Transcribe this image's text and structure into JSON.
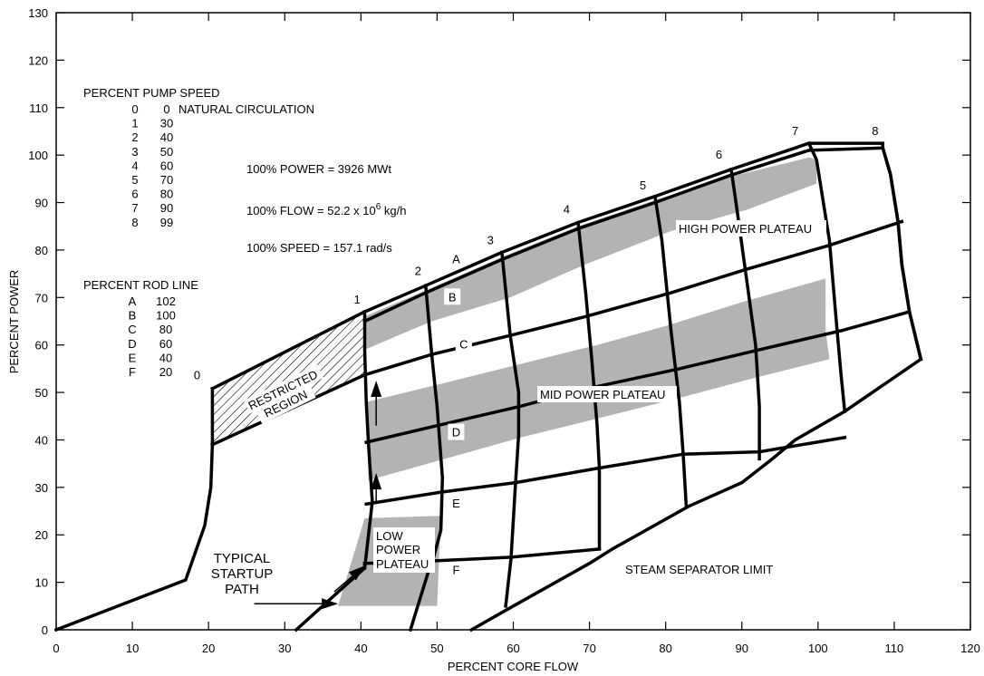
{
  "chart_data": {
    "type": "line",
    "xlabel": "PERCENT CORE FLOW",
    "ylabel": "PERCENT POWER",
    "xlim": [
      0,
      120
    ],
    "ylim": [
      0,
      130
    ],
    "x_ticks": [
      "0",
      "10",
      "20",
      "30",
      "40",
      "50",
      "60",
      "70",
      "80",
      "90",
      "100",
      "110",
      "120"
    ],
    "y_ticks": [
      "0",
      "10",
      "20",
      "30",
      "40",
      "50",
      "60",
      "70",
      "80",
      "90",
      "100",
      "110",
      "120",
      "130"
    ],
    "grid": false,
    "colors": {
      "line": "#000000",
      "plateau": "#b3b3b3",
      "background": "#ffffff"
    },
    "legend_pump": {
      "title": "PERCENT PUMP SPEED",
      "rows": [
        {
          "id": "0",
          "value": "0",
          "note": "NATURAL CIRCULATION"
        },
        {
          "id": "1",
          "value": "30",
          "note": ""
        },
        {
          "id": "2",
          "value": "40",
          "note": ""
        },
        {
          "id": "3",
          "value": "50",
          "note": ""
        },
        {
          "id": "4",
          "value": "60",
          "note": ""
        },
        {
          "id": "5",
          "value": "70",
          "note": ""
        },
        {
          "id": "6",
          "value": "80",
          "note": ""
        },
        {
          "id": "7",
          "value": "90",
          "note": ""
        },
        {
          "id": "8",
          "value": "99",
          "note": ""
        }
      ]
    },
    "legend_rod": {
      "title": "PERCENT ROD LINE",
      "rows": [
        {
          "id": "A",
          "value": "102"
        },
        {
          "id": "B",
          "value": "100"
        },
        {
          "id": "C",
          "value": "80"
        },
        {
          "id": "D",
          "value": "60"
        },
        {
          "id": "E",
          "value": "40"
        },
        {
          "id": "F",
          "value": "20"
        }
      ]
    },
    "notes": {
      "power": "100% POWER = 3926 MWt",
      "flow_pre": "100% FLOW = 52.2 x 10",
      "flow_exp": "6",
      "flow_post": " kg/h",
      "speed": "100% SPEED = 157.1 rad/s"
    },
    "region_labels": {
      "restricted_line1": "RESTRICTED",
      "restricted_line2": "REGION",
      "high_plateau": "HIGH POWER PLATEAU",
      "mid_plateau": "MID POWER PLATEAU",
      "low_plateau_1": "LOW",
      "low_plateau_2": "POWER",
      "low_plateau_3": "PLATEAU",
      "startup_1": "TYPICAL",
      "startup_2": "STARTUP",
      "startup_3": "PATH",
      "separator": "STEAM SEPARATOR LIMIT"
    },
    "pump_speed_lines": [
      {
        "id": "0",
        "points": [
          [
            20.5,
            50.8
          ],
          [
            20.5,
            39
          ]
        ]
      },
      {
        "id": "1",
        "points": [
          [
            40.5,
            67
          ],
          [
            40.5,
            59
          ],
          [
            40.7,
            48
          ],
          [
            41,
            39
          ],
          [
            41.5,
            27
          ],
          [
            40.5,
            13
          ]
        ]
      },
      {
        "id": "2",
        "points": [
          [
            48.5,
            72.5
          ],
          [
            49.3,
            58
          ],
          [
            50,
            47
          ],
          [
            50.7,
            32
          ],
          [
            50.5,
            21
          ],
          [
            49.5,
            15
          ],
          [
            49,
            13
          ],
          [
            46.5,
            0
          ]
        ]
      },
      {
        "id": "3",
        "points": [
          [
            58.5,
            79.5
          ],
          [
            59.6,
            62
          ],
          [
            60.7,
            50
          ],
          [
            60.7,
            41
          ],
          [
            60.3,
            31
          ],
          [
            59.7,
            15
          ],
          [
            59,
            5
          ]
        ]
      },
      {
        "id": "4",
        "points": [
          [
            68.5,
            85.8
          ],
          [
            69.5,
            71
          ],
          [
            70.3,
            57
          ],
          [
            71,
            43
          ],
          [
            71.3,
            34
          ],
          [
            71.3,
            17
          ]
        ]
      },
      {
        "id": "5",
        "points": [
          [
            78.6,
            91.3
          ],
          [
            79.5,
            82
          ],
          [
            80.7,
            63
          ],
          [
            81.8,
            48
          ],
          [
            82.3,
            37
          ],
          [
            82.7,
            26
          ]
        ]
      },
      {
        "id": "6",
        "points": [
          [
            88.6,
            97
          ],
          [
            89.5,
            87
          ],
          [
            90.7,
            73
          ],
          [
            91.8,
            60
          ],
          [
            92.3,
            47
          ],
          [
            92.3,
            36
          ]
        ]
      },
      {
        "id": "7",
        "points": [
          [
            98.8,
            102.5
          ],
          [
            99.8,
            99
          ],
          [
            101.5,
            82
          ],
          [
            102.5,
            63
          ],
          [
            103,
            54
          ],
          [
            103.5,
            46
          ]
        ]
      },
      {
        "id": "8",
        "points": [
          [
            108.5,
            101.5
          ],
          [
            109.5,
            96
          ],
          [
            110.5,
            86
          ],
          [
            111,
            77
          ],
          [
            112,
            67
          ],
          [
            113.5,
            57
          ]
        ]
      }
    ],
    "rod_lines": [
      {
        "id": "A",
        "points": [
          [
            20.5,
            50.8
          ],
          [
            40.5,
            67
          ],
          [
            48.5,
            72.5
          ],
          [
            58.5,
            79.5
          ],
          [
            68.5,
            85.8
          ],
          [
            78.6,
            91.3
          ],
          [
            88.6,
            97
          ],
          [
            97,
            101.5
          ],
          [
            98.8,
            102.5
          ],
          [
            108.5,
            102.5
          ],
          [
            108.5,
            101.5
          ],
          [
            109.5,
            96
          ],
          [
            110.5,
            86
          ],
          [
            111,
            77
          ],
          [
            112,
            67
          ],
          [
            113.5,
            57
          ]
        ]
      },
      {
        "id": "B",
        "points": [
          [
            40.5,
            65
          ],
          [
            48.5,
            71
          ],
          [
            58.5,
            78
          ],
          [
            68.5,
            84.5
          ],
          [
            78.6,
            90
          ],
          [
            88.6,
            95.8
          ],
          [
            98.8,
            101
          ],
          [
            108.5,
            101.5
          ]
        ]
      },
      {
        "id": "C",
        "points": [
          [
            20.5,
            39
          ],
          [
            40.5,
            53.7
          ],
          [
            49.3,
            58
          ],
          [
            59.6,
            62
          ],
          [
            69.5,
            66
          ],
          [
            80.7,
            71
          ],
          [
            90.7,
            76
          ],
          [
            101.5,
            81
          ],
          [
            111,
            86
          ]
        ]
      },
      {
        "id": "D",
        "points": [
          [
            40.7,
            39.5
          ],
          [
            50,
            43
          ],
          [
            60.7,
            47
          ],
          [
            70.3,
            51
          ],
          [
            81.8,
            55
          ],
          [
            92.3,
            59
          ],
          [
            103,
            63
          ],
          [
            112,
            67
          ]
        ]
      },
      {
        "id": "E",
        "points": [
          [
            40.7,
            26.5
          ],
          [
            50.5,
            29
          ],
          [
            60.3,
            31
          ],
          [
            71,
            34
          ],
          [
            82.3,
            37
          ],
          [
            92.3,
            37.5
          ],
          [
            103.5,
            40.5
          ]
        ]
      },
      {
        "id": "F",
        "points": [
          [
            40.5,
            14
          ],
          [
            49.5,
            14.5
          ],
          [
            59.7,
            15.3
          ],
          [
            71.3,
            17
          ]
        ]
      }
    ],
    "startup_curve": [
      [
        0,
        0
      ],
      [
        17,
        10.5
      ],
      [
        19.5,
        22
      ],
      [
        20.3,
        30
      ],
      [
        20.5,
        39
      ]
    ],
    "low_entry_line": [
      [
        31.5,
        0
      ],
      [
        40.5,
        13
      ],
      [
        40.5,
        14
      ]
    ],
    "separator_limit": [
      [
        54.5,
        0
      ],
      [
        60,
        5
      ],
      [
        70,
        14
      ],
      [
        73,
        17
      ],
      [
        83,
        26
      ],
      [
        90,
        31
      ],
      [
        94,
        36
      ],
      [
        97,
        40
      ],
      [
        103.5,
        46
      ],
      [
        113.5,
        57
      ]
    ],
    "plateaus": {
      "high": [
        [
          40.5,
          59
        ],
        [
          49.3,
          65
        ],
        [
          59.6,
          70
        ],
        [
          69.5,
          77
        ],
        [
          80.7,
          84
        ],
        [
          90.7,
          88.5
        ],
        [
          99.8,
          94
        ],
        [
          99.8,
          99
        ],
        [
          98.8,
          99.5
        ],
        [
          88.6,
          95.5
        ],
        [
          78.6,
          90.5
        ],
        [
          68.5,
          85
        ],
        [
          58.5,
          78.5
        ],
        [
          48.5,
          71.5
        ],
        [
          40.5,
          66
        ]
      ],
      "mid": [
        [
          40.7,
          48
        ],
        [
          51,
          52
        ],
        [
          61,
          56
        ],
        [
          71,
          60
        ],
        [
          80,
          64
        ],
        [
          90,
          69
        ],
        [
          101,
          74
        ],
        [
          101,
          63
        ],
        [
          101.5,
          57
        ],
        [
          91.5,
          53
        ],
        [
          81,
          48.5
        ],
        [
          71,
          44.5
        ],
        [
          61,
          40.5
        ],
        [
          51,
          36
        ],
        [
          41,
          31.5
        ]
      ],
      "low": [
        [
          37,
          5
        ],
        [
          50,
          5
        ],
        [
          50.5,
          24
        ],
        [
          40.5,
          23.5
        ]
      ]
    },
    "arrows": [
      {
        "from": [
          26,
          5.5
        ],
        "to": [
          37,
          5.5
        ]
      },
      {
        "from": [
          36.5,
          8
        ],
        "to": [
          40.5,
          13.5
        ]
      },
      {
        "from": [
          42,
          27
        ],
        "to": [
          42,
          33
        ]
      },
      {
        "from": [
          42,
          43
        ],
        "to": [
          42,
          52.5
        ]
      }
    ]
  }
}
